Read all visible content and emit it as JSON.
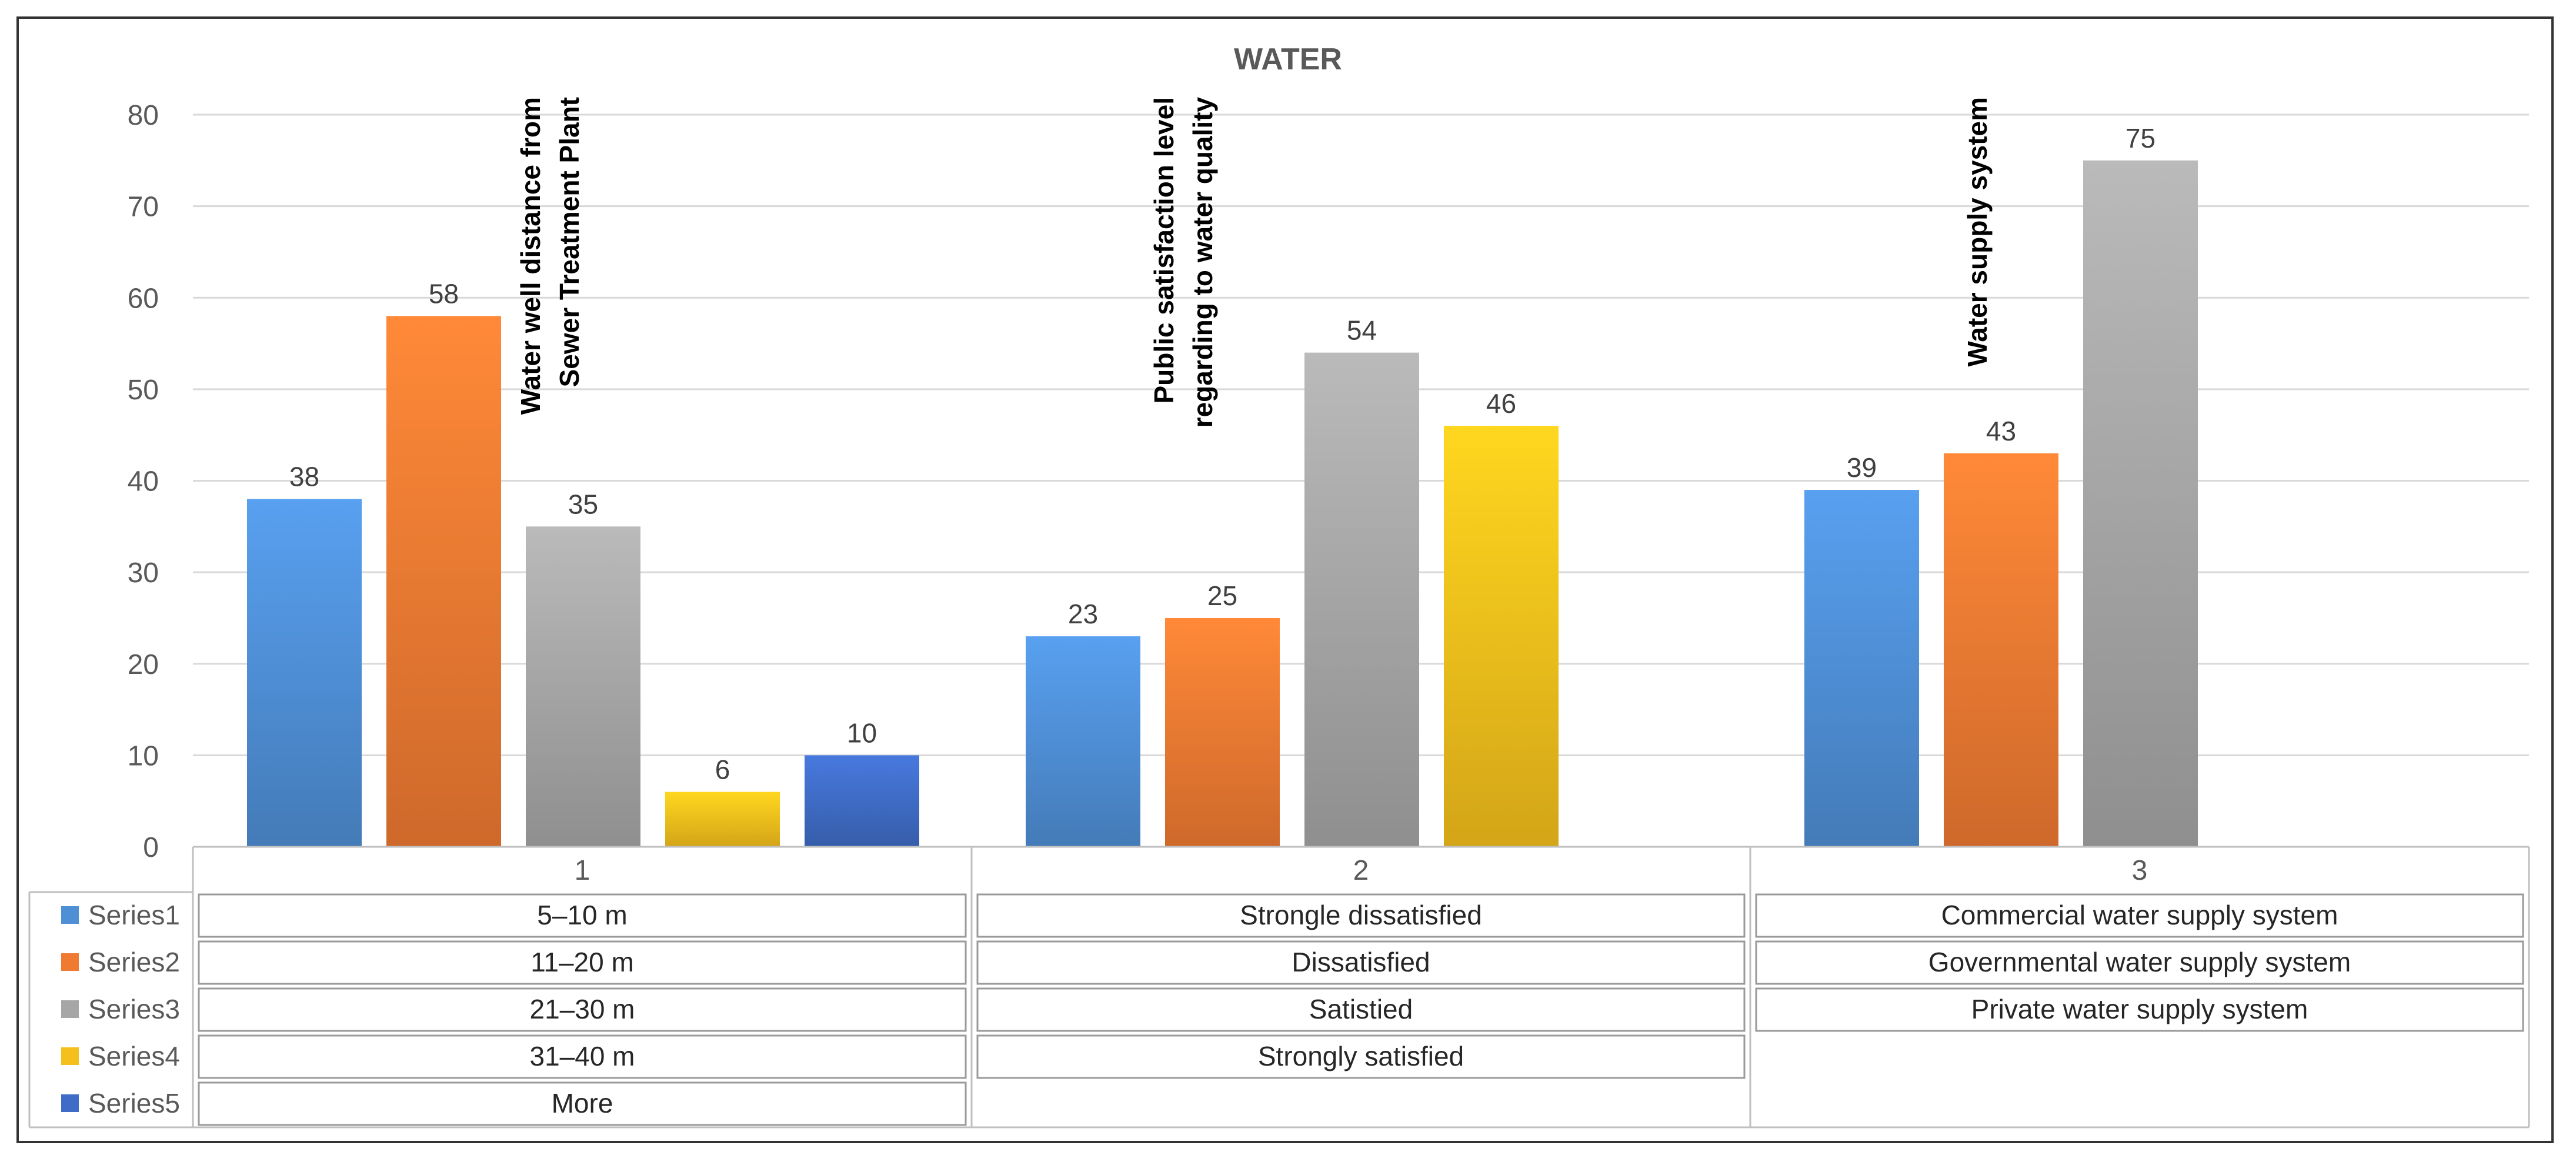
{
  "chart_data": {
    "type": "bar",
    "title": "WATER",
    "categories": [
      "1",
      "2",
      "3"
    ],
    "ylim": [
      0,
      80
    ],
    "yticks": [
      0,
      10,
      20,
      30,
      40,
      50,
      60,
      70,
      80
    ],
    "grid": true,
    "legend_position": "table-left",
    "series": [
      {
        "name": "Series1",
        "color": "#4f8fd6",
        "values": [
          38,
          23,
          39
        ]
      },
      {
        "name": "Series2",
        "color": "#ef7a32",
        "values": [
          58,
          25,
          43
        ]
      },
      {
        "name": "Series3",
        "color": "#a6a6a6",
        "values": [
          35,
          54,
          75
        ]
      },
      {
        "name": "Series4",
        "color": "#f5c01c",
        "values": [
          6,
          46,
          null
        ]
      },
      {
        "name": "Series5",
        "color": "#3f6cc6",
        "values": [
          10,
          null,
          null
        ]
      }
    ],
    "annotations": [
      {
        "category": "1",
        "lines": [
          "Water well distance from",
          "Sewer Treatment Plant"
        ]
      },
      {
        "category": "2",
        "lines": [
          "Public satisfaction level",
          "regarding to water quality"
        ]
      },
      {
        "category": "3",
        "lines": [
          "Water supply system"
        ]
      }
    ],
    "table": [
      [
        "5–10 m",
        "Strongle dissatisfied",
        "Commercial water supply system"
      ],
      [
        "11–20 m",
        "Dissatisfied",
        "Governmental water supply system"
      ],
      [
        "21–30 m",
        "Satistied",
        "Private water supply system"
      ],
      [
        "31–40 m",
        "Strongly satisfied",
        ""
      ],
      [
        "More",
        "",
        ""
      ]
    ]
  }
}
